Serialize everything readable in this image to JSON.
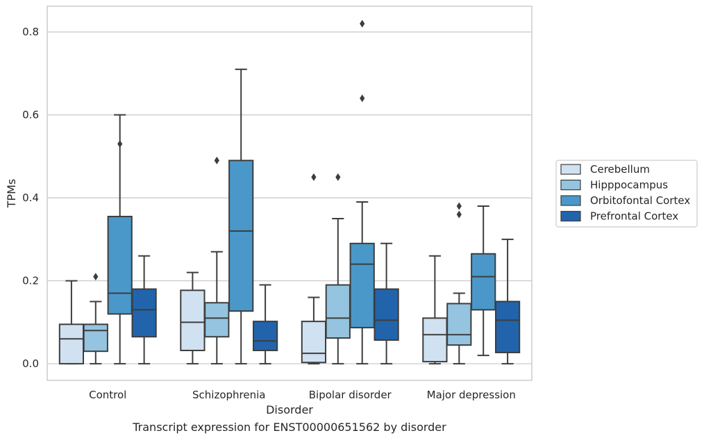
{
  "caption": "Transcript expression for ENST00000651562 by disorder",
  "chart_data": {
    "type": "box",
    "xlabel": "Disorder",
    "ylabel": "TPMs",
    "ylim": [
      -0.04,
      0.862
    ],
    "yticks": [
      "0.0",
      "0.2",
      "0.4",
      "0.6",
      "0.8"
    ],
    "ytick_values": [
      0.0,
      0.2,
      0.4,
      0.6,
      0.8
    ],
    "grid": true,
    "legend_position": "right",
    "categories": [
      "Control",
      "Schizophrenia",
      "Bipolar disorder",
      "Major depression"
    ],
    "series": [
      {
        "name": "Cerebellum",
        "color": "#d0e1f2",
        "boxes": [
          {
            "whislo": 0.0,
            "q1": 0.0,
            "med": 0.06,
            "q3": 0.095,
            "whishi": 0.2,
            "fliers": []
          },
          {
            "whislo": 0.0,
            "q1": 0.032,
            "med": 0.1,
            "q3": 0.177,
            "whishi": 0.22,
            "fliers": []
          },
          {
            "whislo": 0.0,
            "q1": 0.003,
            "med": 0.025,
            "q3": 0.102,
            "whishi": 0.16,
            "fliers": [
              0.45
            ]
          },
          {
            "whislo": 0.0,
            "q1": 0.005,
            "med": 0.07,
            "q3": 0.11,
            "whishi": 0.26,
            "fliers": []
          }
        ]
      },
      {
        "name": "Hipppocampus",
        "color": "#94c4df",
        "boxes": [
          {
            "whislo": 0.0,
            "q1": 0.03,
            "med": 0.08,
            "q3": 0.095,
            "whishi": 0.15,
            "fliers": [
              0.21
            ]
          },
          {
            "whislo": 0.0,
            "q1": 0.065,
            "med": 0.11,
            "q3": 0.147,
            "whishi": 0.27,
            "fliers": [
              0.49
            ]
          },
          {
            "whislo": 0.0,
            "q1": 0.062,
            "med": 0.11,
            "q3": 0.19,
            "whishi": 0.35,
            "fliers": [
              0.45
            ]
          },
          {
            "whislo": 0.0,
            "q1": 0.045,
            "med": 0.07,
            "q3": 0.145,
            "whishi": 0.17,
            "fliers": [
              0.36,
              0.38
            ]
          }
        ]
      },
      {
        "name": "Orbitofontal Cortex",
        "color": "#4a98c9",
        "boxes": [
          {
            "whislo": 0.0,
            "q1": 0.12,
            "med": 0.17,
            "q3": 0.355,
            "whishi": 0.6,
            "fliers": [
              0.53
            ]
          },
          {
            "whislo": 0.0,
            "q1": 0.127,
            "med": 0.32,
            "q3": 0.49,
            "whishi": 0.71,
            "fliers": []
          },
          {
            "whislo": 0.0,
            "q1": 0.087,
            "med": 0.24,
            "q3": 0.29,
            "whishi": 0.39,
            "fliers": [
              0.64,
              0.82
            ]
          },
          {
            "whislo": 0.02,
            "q1": 0.13,
            "med": 0.21,
            "q3": 0.265,
            "whishi": 0.38,
            "fliers": []
          }
        ]
      },
      {
        "name": "Prefrontal Cortex",
        "color": "#2164ab",
        "boxes": [
          {
            "whislo": 0.0,
            "q1": 0.065,
            "med": 0.13,
            "q3": 0.18,
            "whishi": 0.26,
            "fliers": []
          },
          {
            "whislo": 0.0,
            "q1": 0.032,
            "med": 0.055,
            "q3": 0.102,
            "whishi": 0.19,
            "fliers": []
          },
          {
            "whislo": 0.0,
            "q1": 0.057,
            "med": 0.105,
            "q3": 0.18,
            "whishi": 0.29,
            "fliers": []
          },
          {
            "whislo": 0.0,
            "q1": 0.027,
            "med": 0.105,
            "q3": 0.15,
            "whishi": 0.3,
            "fliers": []
          }
        ]
      }
    ]
  }
}
